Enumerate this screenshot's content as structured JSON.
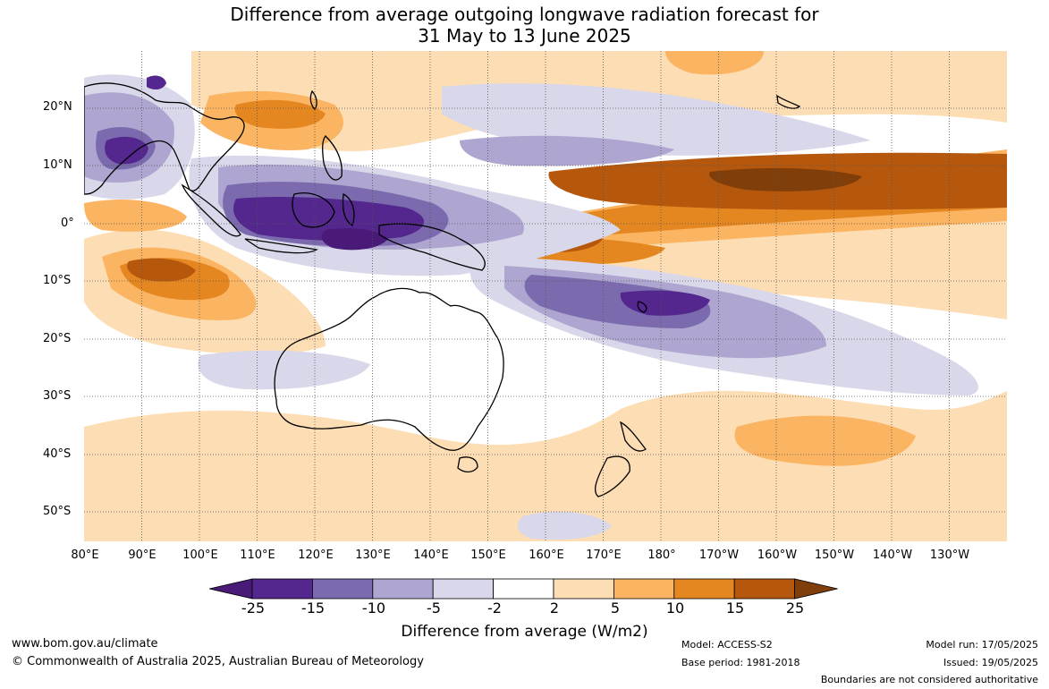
{
  "title": {
    "line1": "Difference from average outgoing longwave radiation forecast for",
    "line2": "31 May to 13 June 2025"
  },
  "map": {
    "latitude_labels": [
      "20°N",
      "10°N",
      "0°",
      "10°S",
      "20°S",
      "30°S",
      "40°S",
      "50°S"
    ],
    "longitude_labels": [
      "80°E",
      "90°E",
      "100°E",
      "110°E",
      "120°E",
      "130°E",
      "140°E",
      "150°E",
      "160°E",
      "170°E",
      "180°",
      "170°W",
      "160°W",
      "150°W",
      "140°W",
      "130°W"
    ],
    "extent": {
      "lon_min": 80,
      "lon_max": 240,
      "lat_min": -55,
      "lat_max": 30
    },
    "features": [
      "Australia",
      "New Zealand",
      "Indonesia",
      "Papua New Guinea",
      "Philippines",
      "Southeast Asia",
      "India"
    ]
  },
  "colorbar": {
    "ticks": [
      "-25",
      "-15",
      "-10",
      "-5",
      "-2",
      "2",
      "5",
      "10",
      "15",
      "25"
    ],
    "colors": [
      "#4a1a78",
      "#54278f",
      "#7b6bae",
      "#aea6d0",
      "#d9d8ea",
      "#ffffff",
      "#fdddb3",
      "#fbb462",
      "#e58721",
      "#b5580d",
      "#803e0a"
    ],
    "title": "Difference from average (W/m2)"
  },
  "footer": {
    "website": "www.bom.gov.au/climate",
    "copyright": "© Commonwealth of Australia 2025, Australian Bureau of Meteorology",
    "model": "Model: ACCESS-S2",
    "base_period": "Base period: 1981-2018",
    "model_run": "Model run: 17/05/2025",
    "issued": "Issued: 19/05/2025",
    "disclaimer": "Boundaries are not considered authoritative"
  }
}
